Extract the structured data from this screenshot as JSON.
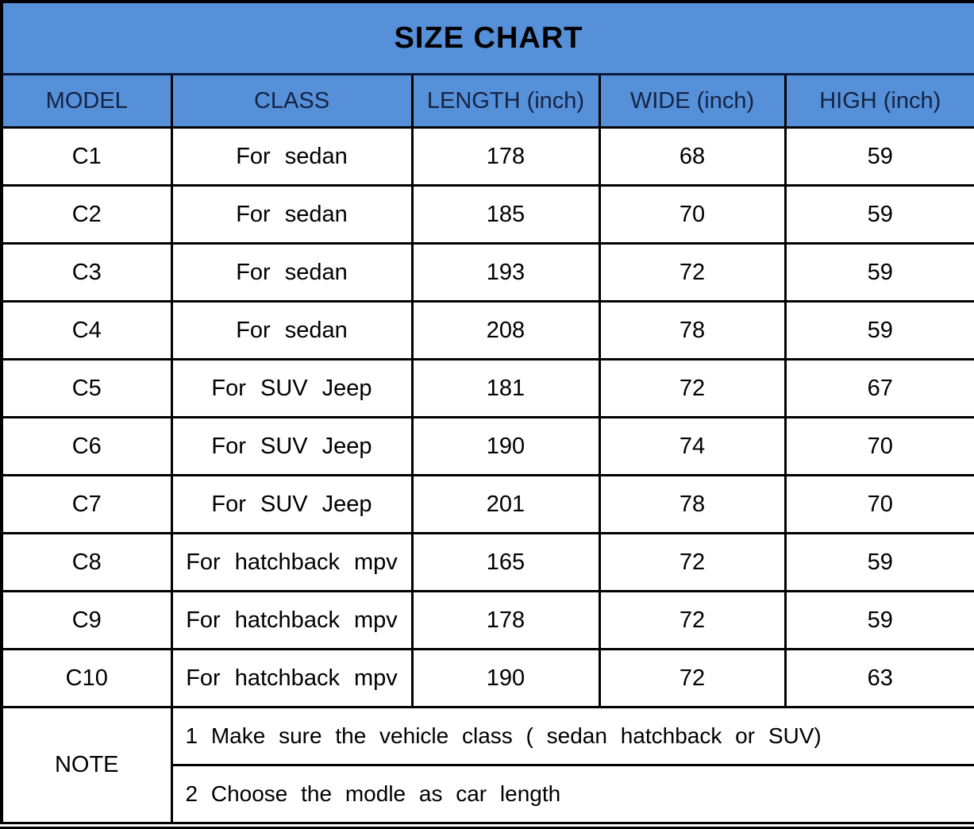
{
  "chart_data": {
    "type": "table",
    "title": "SIZE CHART",
    "columns": [
      "MODEL",
      "CLASS",
      "LENGTH (inch)",
      "WIDE (inch)",
      "HIGH (inch)"
    ],
    "rows": [
      [
        "C1",
        "For sedan",
        "178",
        "68",
        "59"
      ],
      [
        "C2",
        "For sedan",
        "185",
        "70",
        "59"
      ],
      [
        "C3",
        "For sedan",
        "193",
        "72",
        "59"
      ],
      [
        "C4",
        "For sedan",
        "208",
        "78",
        "59"
      ],
      [
        "C5",
        "For SUV Jeep",
        "181",
        "72",
        "67"
      ],
      [
        "C6",
        "For SUV Jeep",
        "190",
        "74",
        "70"
      ],
      [
        "C7",
        "For SUV Jeep",
        "201",
        "78",
        "70"
      ],
      [
        "C8",
        "For hatchback mpv",
        "165",
        "72",
        "59"
      ],
      [
        "C9",
        "For hatchback mpv",
        "178",
        "72",
        "59"
      ],
      [
        "C10",
        "For hatchback mpv",
        "190",
        "72",
        "63"
      ]
    ],
    "note_label": "NOTE",
    "notes": [
      "1 Make sure the vehicle class ( sedan hatchback or SUV)",
      "2 Choose the modle as car length"
    ]
  },
  "colors": {
    "header_bg": "#5590d9",
    "header_text": "#152343",
    "title_text": "#000000",
    "body_text": "#000000",
    "grid": "#000000"
  }
}
